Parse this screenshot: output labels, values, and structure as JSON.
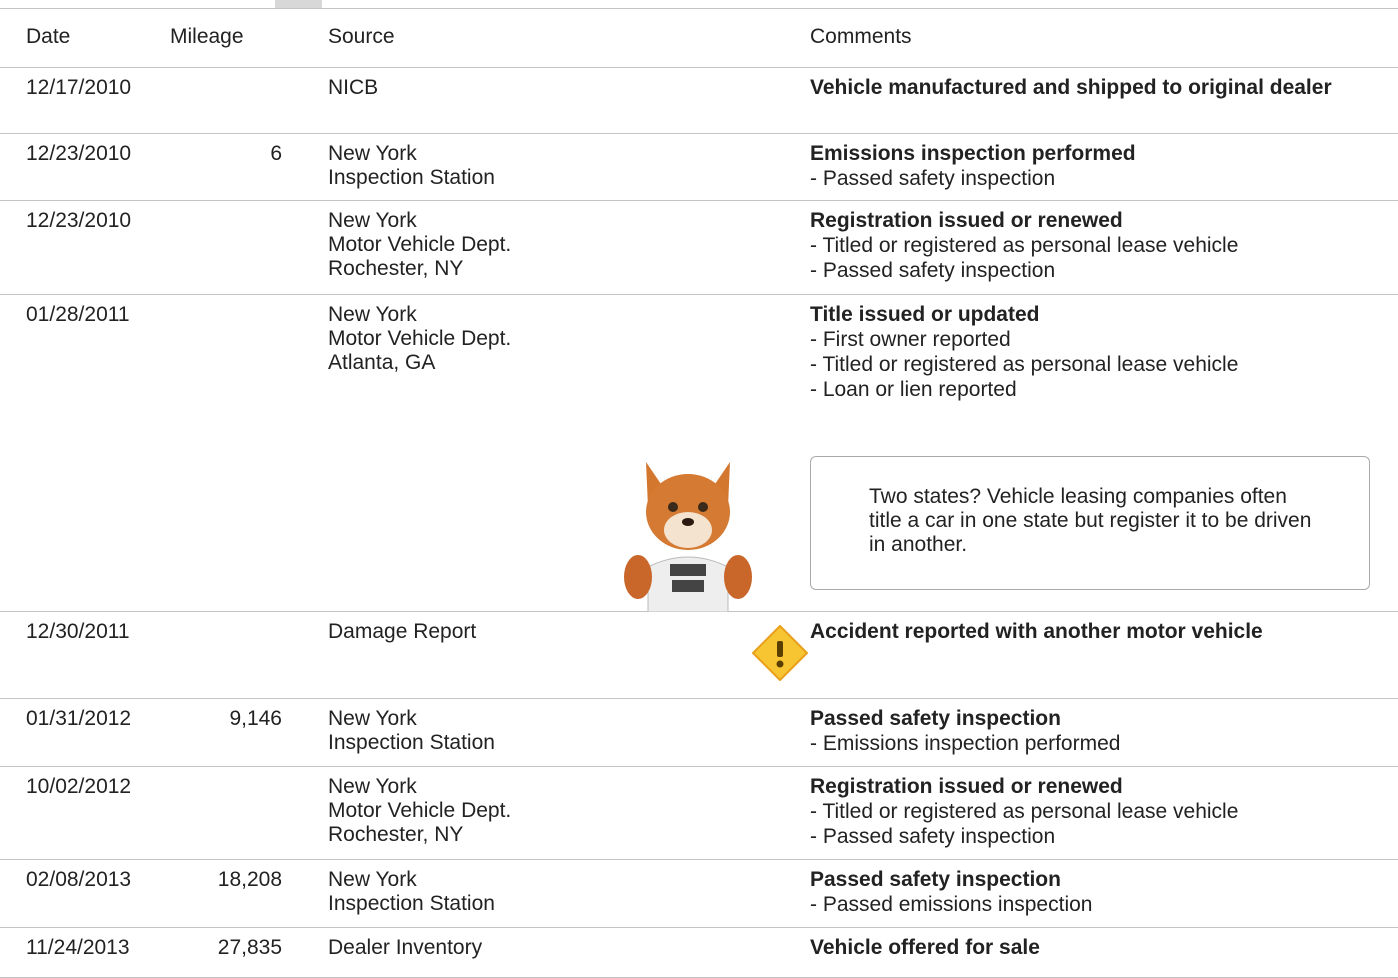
{
  "header": {
    "columns": [
      "Date",
      "Mileage",
      "Source",
      "Comments"
    ]
  },
  "rows": [
    {
      "date": "12/17/2010",
      "source": [
        "NICB"
      ],
      "comment_title": "Vehicle manufactured and shipped to original dealer"
    },
    {
      "date": "12/23/2010",
      "mileage": "6",
      "source": [
        "New York",
        "Inspection Station"
      ],
      "comment_title": "Emissions inspection performed",
      "comment_details": [
        "- Passed safety inspection"
      ]
    },
    {
      "date": "12/23/2010",
      "source": [
        "New York",
        "Motor Vehicle Dept.",
        "Rochester, NY"
      ],
      "comment_title": "Registration issued or renewed",
      "comment_details": [
        "- Titled or registered as personal lease vehicle",
        "- Passed safety inspection"
      ]
    },
    {
      "date": "01/28/2011",
      "source": [
        "New York",
        "Motor Vehicle Dept.",
        "Atlanta, GA"
      ],
      "comment_title": "Title issued or updated",
      "comment_details": [
        "- First owner reported",
        "- Titled or registered as personal lease vehicle",
        "- Loan or lien reported"
      ],
      "note": "Two states? Vehicle leasing companies often title a car in one state but register it to be driven in another."
    },
    {
      "date": "12/30/2011",
      "source": [
        "Damage Report"
      ],
      "comment_title": "Accident reported with another motor vehicle",
      "alert": true
    },
    {
      "date": "01/31/2012",
      "mileage": "9,146",
      "source": [
        "New York",
        "Inspection Station"
      ],
      "comment_title": "Passed safety inspection",
      "comment_details": [
        "- Emissions inspection performed"
      ]
    },
    {
      "date": "10/02/2012",
      "source": [
        "New York",
        "Motor Vehicle Dept.",
        "Rochester, NY"
      ],
      "comment_title": "Registration issued or renewed",
      "comment_details": [
        "- Titled or registered as personal lease vehicle",
        "- Passed safety inspection"
      ]
    },
    {
      "date": "02/08/2013",
      "mileage": "18,208",
      "source": [
        "New York",
        "Inspection Station"
      ],
      "comment_title": "Passed safety inspection",
      "comment_details": [
        "- Passed emissions inspection"
      ]
    },
    {
      "date": "11/24/2013",
      "mileage": "27,835",
      "source": [
        "Dealer Inventory"
      ],
      "comment_title": "Vehicle offered for sale"
    }
  ]
}
